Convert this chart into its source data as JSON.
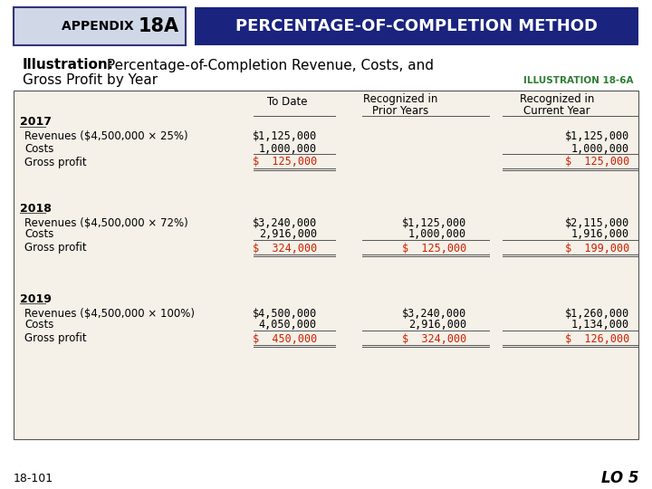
{
  "header_left_text": "APPENDIX 18A",
  "header_right_text": "PERCENTAGE-OF-COMPLETION METHOD",
  "header_left_bg": "#d0d8e8",
  "header_right_bg": "#1a237e",
  "header_right_color": "#ffffff",
  "header_left_color": "#000000",
  "illustration_label": "Illustration:",
  "illustration_text": " Percentage-of-Completion Revenue, Costs, and\nGross Profit by Year",
  "illus_ref": "ILLUSTRATION 18-6A",
  "illus_ref_color": "#2e7d32",
  "table_bg": "#f5f0e8",
  "col_headers": [
    "",
    "To Date",
    "Recognized in\nPrior Years",
    "Recognized in\nCurrent Year"
  ],
  "sections": [
    {
      "year": "2017",
      "rows": [
        {
          "label": "Revenues ($4,500,000 × 25%)",
          "to_date": "$1,125,000",
          "prior": "",
          "current": "$1,125,000",
          "bold": false
        },
        {
          "label": "Costs",
          "to_date": "1,000,000",
          "prior": "",
          "current": "1,000,000",
          "bold": false
        },
        {
          "label": "Gross profit",
          "to_date": "$  125,000",
          "prior": "",
          "current": "$  125,000",
          "bold": false,
          "highlight": true
        }
      ]
    },
    {
      "year": "2018",
      "rows": [
        {
          "label": "Revenues ($4,500,000 × 72%)",
          "to_date": "$3,240,000",
          "prior": "$1,125,000",
          "current": "$2,115,000",
          "bold": false
        },
        {
          "label": "Costs",
          "to_date": "2,916,000",
          "prior": "1,000,000",
          "current": "1,916,000",
          "bold": false
        },
        {
          "label": "Gross profit",
          "to_date": "$  324,000",
          "prior": "$  125,000",
          "current": "$  199,000",
          "bold": false,
          "highlight": true
        }
      ]
    },
    {
      "year": "2019",
      "rows": [
        {
          "label": "Revenues ($4,500,000 × 100%)",
          "to_date": "$4,500,000",
          "prior": "$3,240,000",
          "current": "$1,260,000",
          "bold": false
        },
        {
          "label": "Costs",
          "to_date": "4,050,000",
          "prior": "2,916,000",
          "current": "1,134,000",
          "bold": false
        },
        {
          "label": "Gross profit",
          "to_date": "$  450,000",
          "prior": "$  324,000",
          "current": "$  126,000",
          "bold": false,
          "highlight": true
        }
      ]
    }
  ],
  "footer_left": "18-101",
  "footer_right": "LO 5",
  "highlight_color": "#cc2200",
  "text_color": "#000000",
  "border_color": "#333333"
}
